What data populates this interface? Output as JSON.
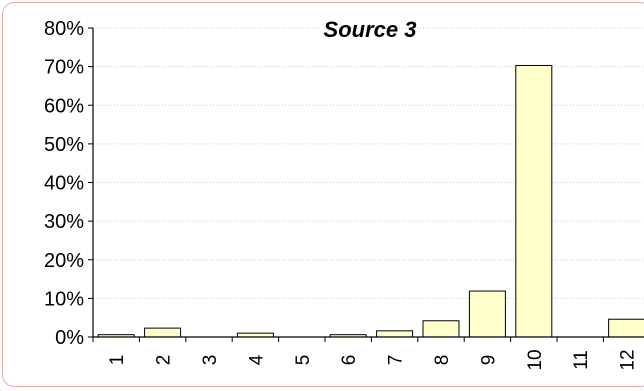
{
  "chart_data": {
    "type": "bar",
    "title": "Source 3",
    "xlabel": "",
    "ylabel": "",
    "categories": [
      "1",
      "2",
      "3",
      "4",
      "5",
      "6",
      "7",
      "8",
      "9",
      "10",
      "11",
      "12"
    ],
    "values": [
      0.6,
      2.3,
      0,
      1.0,
      0,
      0.6,
      1.6,
      4.2,
      11.9,
      70.3,
      0,
      4.6
    ],
    "ylim": [
      0,
      80
    ],
    "y_ticks": [
      "0%",
      "10%",
      "20%",
      "30%",
      "40%",
      "50%",
      "60%",
      "70%",
      "80%"
    ],
    "grid": true,
    "colors": {
      "bar_fill": "#ffffcc",
      "bar_stroke": "#000000",
      "grid": "#cccccc",
      "frame": "#e8a8a8"
    }
  }
}
